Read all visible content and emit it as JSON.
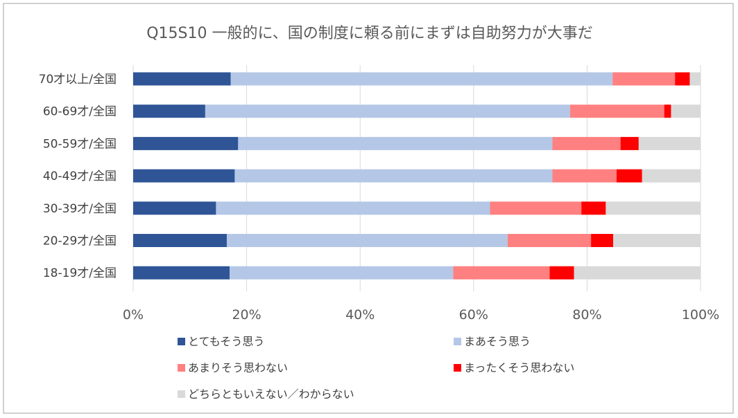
{
  "chart_data": {
    "type": "bar",
    "orientation": "horizontal",
    "stacked": "percent",
    "title": "Q15S10 一般的に、国の制度に頼る前にまずは自助努力が大事だ",
    "categories": [
      "70才以上/全国",
      "60-69才/全国",
      "50-59才/全国",
      "40-49才/全国",
      "30-39才/全国",
      "20-29才/全国",
      "18-19才/全国"
    ],
    "series": [
      {
        "name": "とてもそう思う",
        "color": "#2f5597",
        "values": [
          17.2,
          12.7,
          18.5,
          17.9,
          14.6,
          16.5,
          17.0
        ]
      },
      {
        "name": "まあそう思う",
        "color": "#b4c7e7",
        "values": [
          67.3,
          64.3,
          55.4,
          56.0,
          48.3,
          49.5,
          39.4
        ]
      },
      {
        "name": "あまりそう思わない",
        "color": "#ff8080",
        "values": [
          11.0,
          16.6,
          12.0,
          11.3,
          16.1,
          14.7,
          17.0
        ]
      },
      {
        "name": "まったくそう思わない",
        "color": "#ff0000",
        "values": [
          2.6,
          1.2,
          3.2,
          4.5,
          4.3,
          3.9,
          4.3
        ]
      },
      {
        "name": "どちらともいえない／わからない",
        "color": "#d9d9d9",
        "values": [
          1.9,
          5.2,
          10.9,
          10.3,
          16.7,
          15.4,
          22.3
        ]
      }
    ],
    "xlim": [
      0,
      100
    ],
    "xticks": [
      "0%",
      "20%",
      "40%",
      "60%",
      "80%",
      "100%"
    ],
    "grid": true,
    "legend_position": "bottom"
  }
}
